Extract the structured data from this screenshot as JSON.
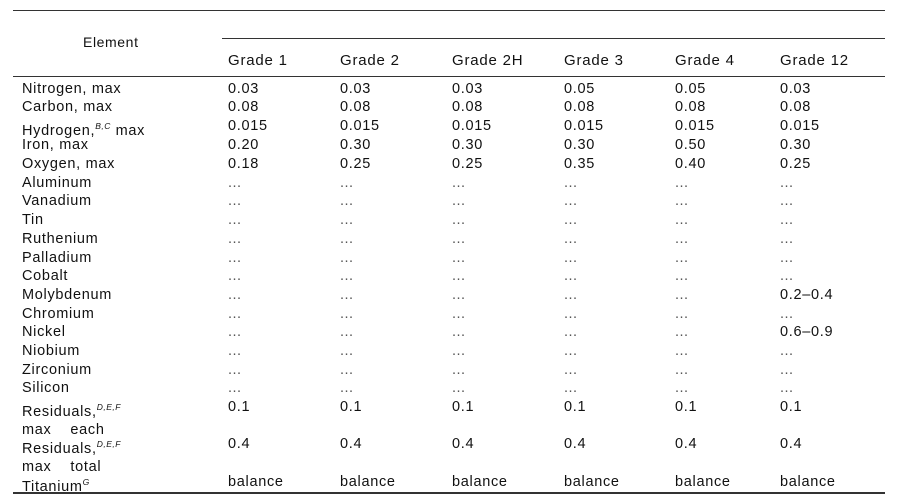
{
  "table": {
    "element_header": "Element",
    "grades": [
      "Grade 1",
      "Grade 2",
      "Grade 2H",
      "Grade 3",
      "Grade 4",
      "Grade 12"
    ],
    "rows": [
      {
        "label": "Nitrogen, max",
        "values": [
          "0.03",
          "0.03",
          "0.03",
          "0.05",
          "0.05",
          "0.03"
        ]
      },
      {
        "label": "Carbon, max",
        "values": [
          "0.08",
          "0.08",
          "0.08",
          "0.08",
          "0.08",
          "0.08"
        ]
      },
      {
        "label": "Hydrogen,",
        "sup": "B,C",
        "suffix": " max",
        "values": [
          "0.015",
          "0.015",
          "0.015",
          "0.015",
          "0.015",
          "0.015"
        ]
      },
      {
        "label": "Iron, max",
        "values": [
          "0.20",
          "0.30",
          "0.30",
          "0.30",
          "0.50",
          "0.30"
        ]
      },
      {
        "label": "Oxygen, max",
        "values": [
          "0.18",
          "0.25",
          "0.25",
          "0.35",
          "0.40",
          "0.25"
        ]
      },
      {
        "label": "Aluminum",
        "values": [
          "...",
          "...",
          "...",
          "...",
          "...",
          "..."
        ]
      },
      {
        "label": "Vanadium",
        "values": [
          "...",
          "...",
          "...",
          "...",
          "...",
          "..."
        ]
      },
      {
        "label": "Tin",
        "values": [
          "...",
          "...",
          "...",
          "...",
          "...",
          "..."
        ]
      },
      {
        "label": "Ruthenium",
        "values": [
          "...",
          "...",
          "...",
          "...",
          "...",
          "..."
        ]
      },
      {
        "label": "Palladium",
        "values": [
          "...",
          "...",
          "...",
          "...",
          "...",
          "..."
        ]
      },
      {
        "label": "Cobalt",
        "values": [
          "...",
          "...",
          "...",
          "...",
          "...",
          "..."
        ]
      },
      {
        "label": "Molybdenum",
        "values": [
          "...",
          "...",
          "...",
          "...",
          "...",
          "0.2–0.4"
        ]
      },
      {
        "label": "Chromium",
        "values": [
          "...",
          "...",
          "...",
          "...",
          "...",
          "..."
        ]
      },
      {
        "label": "Nickel",
        "values": [
          "...",
          "...",
          "...",
          "...",
          "...",
          "0.6–0.9"
        ]
      },
      {
        "label": "Niobium",
        "values": [
          "...",
          "...",
          "...",
          "...",
          "...",
          "..."
        ]
      },
      {
        "label": "Zirconium",
        "values": [
          "...",
          "...",
          "...",
          "...",
          "...",
          "..."
        ]
      },
      {
        "label": "Silicon",
        "values": [
          "...",
          "...",
          "...",
          "...",
          "...",
          "..."
        ]
      },
      {
        "label": "Residuals,",
        "sup": "D,E,F",
        "line2": "max    each",
        "values": [
          "0.1",
          "0.1",
          "0.1",
          "0.1",
          "0.1",
          "0.1"
        ]
      },
      {
        "label": "Residuals,",
        "sup": "D,E,F",
        "line2": "max    total",
        "values": [
          "0.4",
          "0.4",
          "0.4",
          "0.4",
          "0.4",
          "0.4"
        ]
      },
      {
        "label": "Titanium",
        "sup": "G",
        "values": [
          "balance",
          "balance",
          "balance",
          "balance",
          "balance",
          "balance"
        ]
      }
    ]
  }
}
